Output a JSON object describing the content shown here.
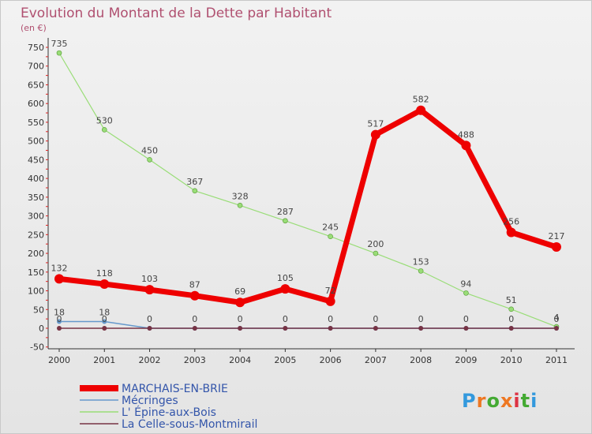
{
  "chart_data": {
    "type": "line",
    "title": "Evolution du Montant de la Dette par Habitant",
    "subtitle": "(en €)",
    "x": [
      "2000",
      "2001",
      "2002",
      "2003",
      "2004",
      "2005",
      "2006",
      "2007",
      "2008",
      "2009",
      "2010",
      "2011"
    ],
    "yticks": [
      "-50",
      "0",
      "50",
      "100",
      "150",
      "200",
      "250",
      "300",
      "350",
      "400",
      "450",
      "500",
      "550",
      "600",
      "650",
      "700",
      "750"
    ],
    "ylim": [
      -50,
      750
    ],
    "grid": false,
    "legend_position": "bottom-left",
    "series": [
      {
        "name": "MARCHAIS-EN-BRIE",
        "color": "#ee0000",
        "values": [
          132,
          118,
          103,
          87,
          69,
          105,
          72,
          517,
          582,
          488,
          256,
          217
        ]
      },
      {
        "name": "Mécringes",
        "color": "#6699cc",
        "values": [
          18,
          18,
          0,
          0,
          0,
          0,
          0,
          0,
          0,
          0,
          0,
          0
        ]
      },
      {
        "name": "L' Épine-aux-Bois",
        "color": "#99dd77",
        "values": [
          735,
          530,
          450,
          367,
          328,
          287,
          245,
          200,
          153,
          94,
          51,
          4
        ]
      },
      {
        "name": "La Celle-sous-Montmirail",
        "color": "#773344",
        "values": [
          0,
          0,
          0,
          0,
          0,
          0,
          0,
          0,
          0,
          0,
          0,
          0
        ]
      }
    ],
    "data_labels": [
      {
        "text": "735",
        "series": 2,
        "i": 0
      },
      {
        "text": "530",
        "series": 2,
        "i": 1
      },
      {
        "text": "450",
        "series": 2,
        "i": 2
      },
      {
        "text": "367",
        "series": 2,
        "i": 3
      },
      {
        "text": "328",
        "series": 2,
        "i": 4
      },
      {
        "text": "287",
        "series": 2,
        "i": 5
      },
      {
        "text": "245",
        "series": 2,
        "i": 6
      },
      {
        "text": "200",
        "series": 2,
        "i": 7
      },
      {
        "text": "153",
        "series": 2,
        "i": 8
      },
      {
        "text": "94",
        "series": 2,
        "i": 9
      },
      {
        "text": "51",
        "series": 2,
        "i": 10
      },
      {
        "text": "4",
        "series": 2,
        "i": 11
      },
      {
        "text": "132",
        "series": 0,
        "i": 0
      },
      {
        "text": "118",
        "series": 0,
        "i": 1
      },
      {
        "text": "103",
        "series": 0,
        "i": 2
      },
      {
        "text": "87",
        "series": 0,
        "i": 3
      },
      {
        "text": "69",
        "series": 0,
        "i": 4
      },
      {
        "text": "105",
        "series": 0,
        "i": 5
      },
      {
        "text": "72",
        "series": 0,
        "i": 6
      },
      {
        "text": "517",
        "series": 0,
        "i": 7
      },
      {
        "text": "582",
        "series": 0,
        "i": 8
      },
      {
        "text": "488",
        "series": 0,
        "i": 9
      },
      {
        "text": "256",
        "series": 0,
        "i": 10
      },
      {
        "text": "217",
        "series": 0,
        "i": 11
      },
      {
        "text": "18",
        "series": 1,
        "i": 0
      },
      {
        "text": "18",
        "series": 1,
        "i": 1
      },
      {
        "text": "0",
        "series": 3,
        "i": 0
      },
      {
        "text": "0",
        "series": 3,
        "i": 1
      },
      {
        "text": "0",
        "series": 3,
        "i": 2
      },
      {
        "text": "0",
        "series": 3,
        "i": 3
      },
      {
        "text": "0",
        "series": 3,
        "i": 4
      },
      {
        "text": "0",
        "series": 3,
        "i": 5
      },
      {
        "text": "0",
        "series": 3,
        "i": 6
      },
      {
        "text": "0",
        "series": 3,
        "i": 7
      },
      {
        "text": "0",
        "series": 3,
        "i": 8
      },
      {
        "text": "0",
        "series": 3,
        "i": 9
      },
      {
        "text": "0",
        "series": 3,
        "i": 10
      },
      {
        "text": "0",
        "series": 3,
        "i": 11
      }
    ]
  },
  "branding": {
    "logo_text": "Proxiti",
    "logo_colors": [
      "#3399dd",
      "#ee7722",
      "#44aa33",
      "#ee7722",
      "#dd3344",
      "#44aa33",
      "#3399dd"
    ]
  }
}
